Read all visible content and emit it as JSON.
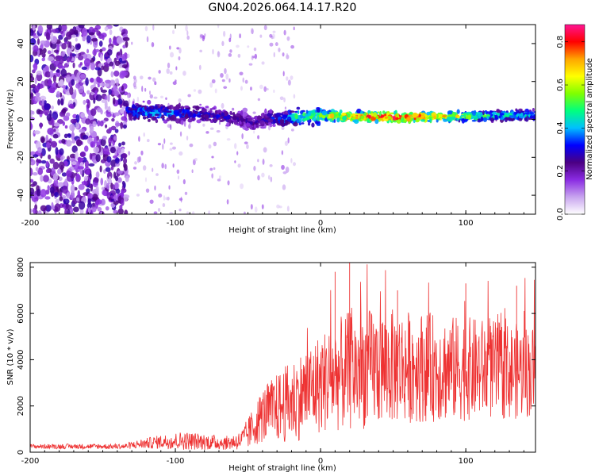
{
  "title": "GN04.2026.064.14.17.R20",
  "chart_data": [
    {
      "type": "heatmap",
      "name": "spectrogram",
      "xlabel": "Height of straight line (km)",
      "ylabel": "Frequency (Hz)",
      "xlim": [
        -200,
        148
      ],
      "ylim": [
        -50,
        50
      ],
      "xticks": [
        -200,
        -100,
        0,
        100
      ],
      "yticks": [
        -40,
        -20,
        0,
        20,
        40
      ],
      "colorbar": {
        "label": "Normalized spectral amplitude",
        "range": [
          0,
          0.88
        ],
        "ticks": [
          0.0,
          0.2,
          0.4,
          0.6,
          0.8
        ],
        "colors": [
          "#ffffff",
          "#c8a4ef",
          "#8a2be2",
          "#4b0082",
          "#0000ff",
          "#00bfff",
          "#00ff7f",
          "#7fff00",
          "#ffff00",
          "#ffa500",
          "#ff0000",
          "#ff1493"
        ]
      },
      "band": {
        "x": [
          -133,
          -115,
          -100,
          -85,
          -70,
          -55,
          -45,
          -35,
          -25,
          -20,
          0,
          20,
          40,
          60,
          80,
          100,
          120,
          148
        ],
        "center_hz": [
          4,
          4,
          3,
          3,
          2,
          0,
          -2,
          1,
          0,
          1,
          2,
          1.5,
          1.5,
          1,
          1.5,
          1.5,
          2,
          2.5
        ],
        "amplitude": [
          0.35,
          0.4,
          0.35,
          0.3,
          0.3,
          0.25,
          0.25,
          0.3,
          0.35,
          0.45,
          0.55,
          0.75,
          0.8,
          0.82,
          0.7,
          0.55,
          0.45,
          0.4
        ]
      }
    },
    {
      "type": "line",
      "name": "snr",
      "xlabel": "Height of straight line (km)",
      "ylabel": "SNR (10 * v/v)",
      "xlim": [
        -200,
        148
      ],
      "ylim": [
        0,
        8200
      ],
      "xticks": [
        -200,
        -100,
        0,
        100
      ],
      "yticks": [
        0,
        2000,
        4000,
        6000,
        8000
      ],
      "color": "#ee3333",
      "envelope": {
        "x": [
          -200,
          -135,
          -125,
          -110,
          -95,
          -80,
          -65,
          -55,
          -50,
          -45,
          -40,
          -30,
          -20,
          -10,
          0,
          10,
          20,
          30,
          50,
          70,
          90,
          110,
          130,
          148
        ],
        "mean": [
          250,
          250,
          350,
          450,
          500,
          450,
          400,
          500,
          800,
          1200,
          1600,
          1900,
          2200,
          2600,
          3000,
          3300,
          3500,
          3600,
          3700,
          3700,
          3600,
          3600,
          3500,
          3500
        ],
        "spread": [
          100,
          120,
          200,
          300,
          400,
          350,
          300,
          400,
          700,
          900,
          1200,
          1500,
          1800,
          2000,
          2200,
          2400,
          2600,
          2600,
          2500,
          2400,
          2300,
          2200,
          2100,
          2000
        ]
      },
      "peaks": [
        {
          "x": 20,
          "y": 8200
        },
        {
          "x": 10,
          "y": 7800
        },
        {
          "x": 100,
          "y": 7300
        },
        {
          "x": 135,
          "y": 7200
        },
        {
          "x": 53,
          "y": 7000
        }
      ]
    }
  ]
}
